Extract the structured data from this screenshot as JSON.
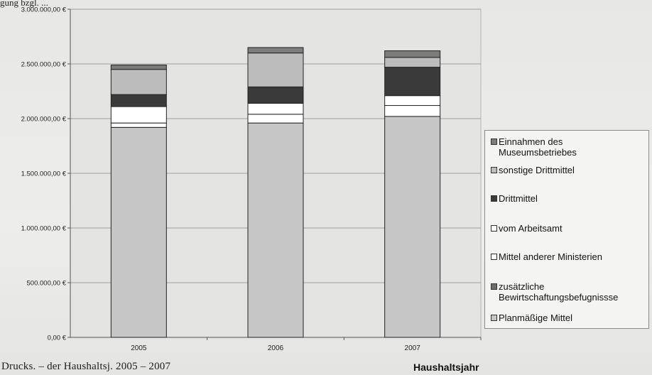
{
  "top_caption": "gung bzgl. ...",
  "bottom_caption": "Drucks. – der Haushaltsj. 2005 – 2007",
  "chart_data": {
    "type": "bar",
    "stacked": true,
    "title": "",
    "xlabel": "Haushaltsjahr",
    "ylabel": "",
    "categories": [
      "2005",
      "2006",
      "2007"
    ],
    "ylim": [
      0,
      3000000
    ],
    "yticks": [
      0,
      500000,
      1000000,
      1500000,
      2000000,
      2500000,
      3000000
    ],
    "ytick_labels": [
      "0,00 €",
      "500.000,00 €",
      "1.000.000,00 €",
      "1.500.000,00 €",
      "2.000.000,00 €",
      "2.500.000,00 €",
      "3.000.000,00 €"
    ],
    "grid": true,
    "legend_position": "right",
    "series": [
      {
        "name": "Planmäßige Mittel",
        "color": "#c6c6c6",
        "values": [
          1920000,
          1960000,
          2020000
        ]
      },
      {
        "name": "zusätzliche\nBewirtschaftungsbefugnissse",
        "color": "#6d6d6d",
        "values": [
          0,
          0,
          0
        ]
      },
      {
        "name": "Mittel anderer Ministerien",
        "color": "#ffffff",
        "values": [
          40000,
          80000,
          100000
        ]
      },
      {
        "name": "vom Arbeitsamt",
        "color": "#ffffff",
        "values": [
          150000,
          100000,
          90000
        ]
      },
      {
        "name": "Drittmittel",
        "color": "#3a3a3a",
        "values": [
          110000,
          150000,
          260000
        ]
      },
      {
        "name": "sonstige Drittmittel",
        "color": "#bcbcbc",
        "values": [
          230000,
          310000,
          90000
        ]
      },
      {
        "name": "Einnahmen des\nMuseumsbetriebes",
        "color": "#7c7c7c",
        "values": [
          40000,
          50000,
          60000
        ]
      }
    ],
    "legend_order": [
      6,
      5,
      4,
      3,
      2,
      1,
      0
    ]
  }
}
